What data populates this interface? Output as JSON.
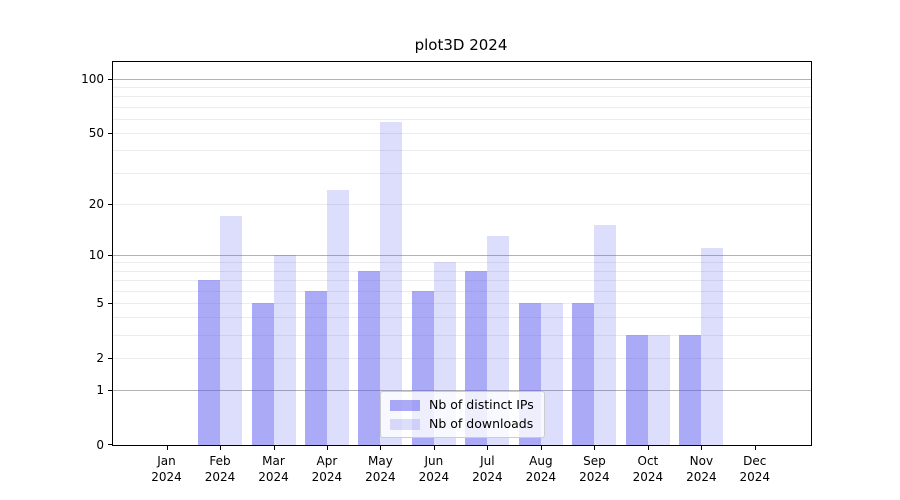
{
  "chart_data": {
    "type": "bar",
    "title": "plot3D 2024",
    "scale": "log1p",
    "categories": [
      "Jan",
      "Feb",
      "Mar",
      "Apr",
      "May",
      "Jun",
      "Jul",
      "Aug",
      "Sep",
      "Oct",
      "Nov",
      "Dec"
    ],
    "x_sub_label": "2024",
    "series": [
      {
        "name": "Nb of distinct IPs",
        "slug": "distinct-ips",
        "color": "rgba(85,85,238,0.5)",
        "values": [
          0,
          7,
          5,
          6,
          8,
          6,
          8,
          5,
          5,
          3,
          3,
          0
        ]
      },
      {
        "name": "Nb of downloads",
        "slug": "downloads",
        "color": "rgba(85,85,238,0.2)",
        "values": [
          0,
          17,
          10,
          24,
          58,
          9,
          13,
          5,
          15,
          3,
          11,
          0
        ]
      }
    ],
    "y_ticks": [
      0,
      1,
      2,
      5,
      10,
      20,
      50,
      100
    ],
    "y_major_gridlines": [
      1,
      10,
      100
    ],
    "y_minor_gridlines": [
      2,
      3,
      4,
      5,
      6,
      7,
      8,
      9,
      20,
      30,
      40,
      50,
      60,
      70,
      80,
      90
    ],
    "y_max": 124,
    "legend_position": "lower center",
    "colors": {
      "major_grid": "#b2b2b2",
      "minor_grid": "#ececec",
      "axis": "#000000",
      "background": "#ffffff"
    }
  }
}
